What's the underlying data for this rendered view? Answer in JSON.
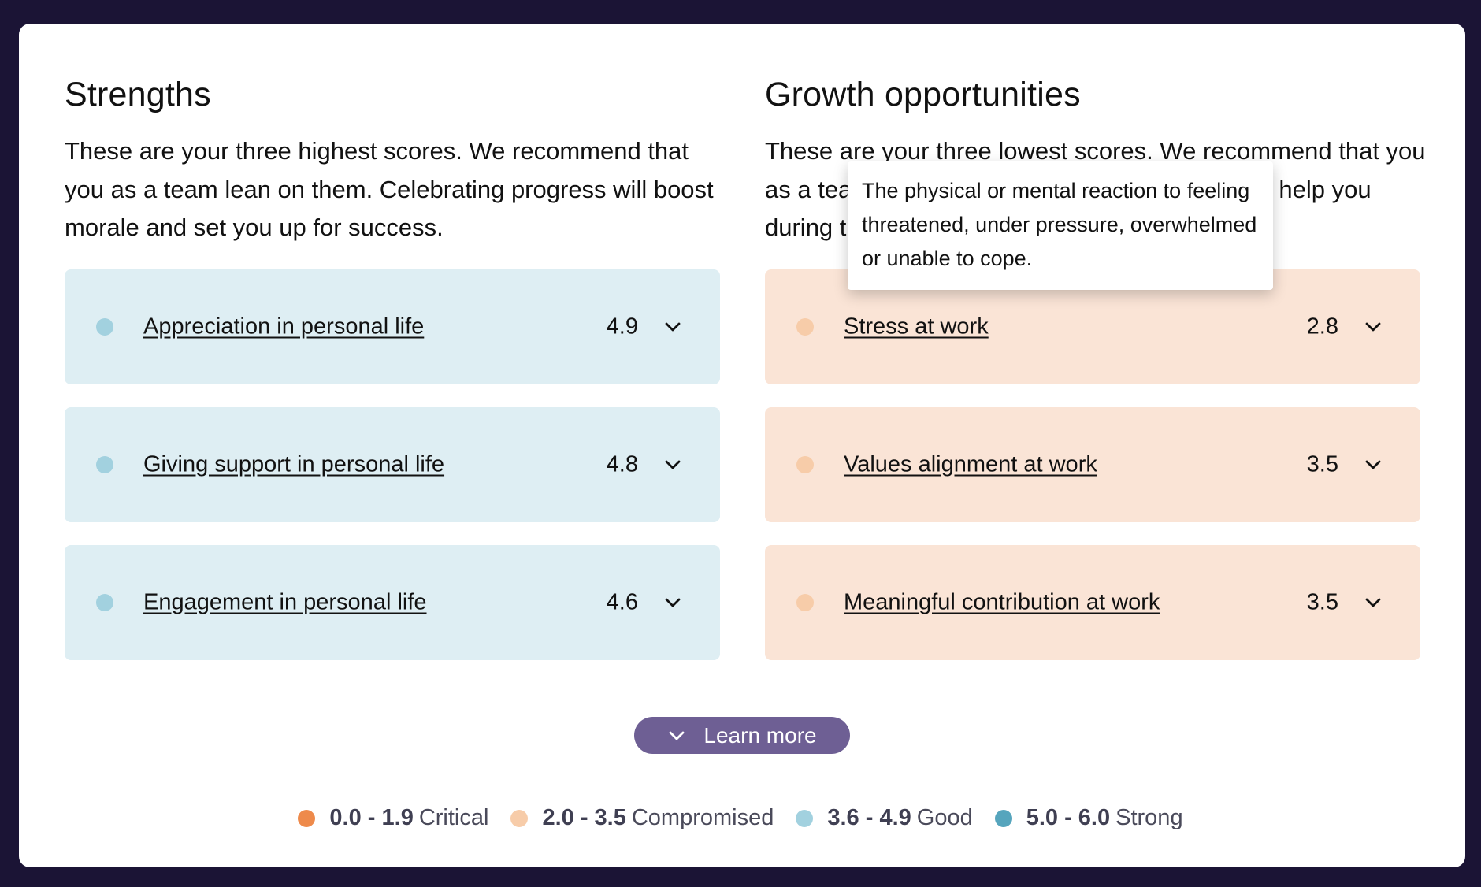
{
  "strengths": {
    "title": "Strengths",
    "description": "These are your three highest scores. We recommend that you as a team lean on them. Celebrating progress will boost morale and set you up for success.",
    "items": [
      {
        "label": "Appreciation in personal life",
        "score": "4.9"
      },
      {
        "label": "Giving support in personal life",
        "score": "4.8"
      },
      {
        "label": "Engagement in personal life",
        "score": "4.6"
      }
    ]
  },
  "growth": {
    "title": "Growth opportunities",
    "description": "These are your three lowest scores. We recommend that you as a team focus on them moving forward. We’ll help you during the coming period of team coaching.",
    "items": [
      {
        "label": "Stress at work",
        "score": "2.8"
      },
      {
        "label": "Values alignment at work",
        "score": "3.5"
      },
      {
        "label": "Meaningful contribution at work",
        "score": "3.5"
      }
    ]
  },
  "tooltip": {
    "text": "The physical or mental reaction to feeling threatened, under pressure, overwhelmed or unable to cope."
  },
  "learn_more": {
    "label": "Learn more",
    "icon": "chevron-down-icon"
  },
  "legend": [
    {
      "range": "0.0 - 1.9",
      "label": "Critical",
      "color": "#ee8a4b"
    },
    {
      "range": "2.0 - 3.5",
      "label": "Compromised",
      "color": "#f7cca9"
    },
    {
      "range": "3.6 - 4.9",
      "label": "Good",
      "color": "#a2d1df"
    },
    {
      "range": "5.0 - 6.0",
      "label": "Strong",
      "color": "#56a5bd"
    }
  ],
  "colors": {
    "background": "#1b1435",
    "strength_card": "#deeef3",
    "growth_card": "#fae4d6",
    "button": "#6e5f94"
  }
}
